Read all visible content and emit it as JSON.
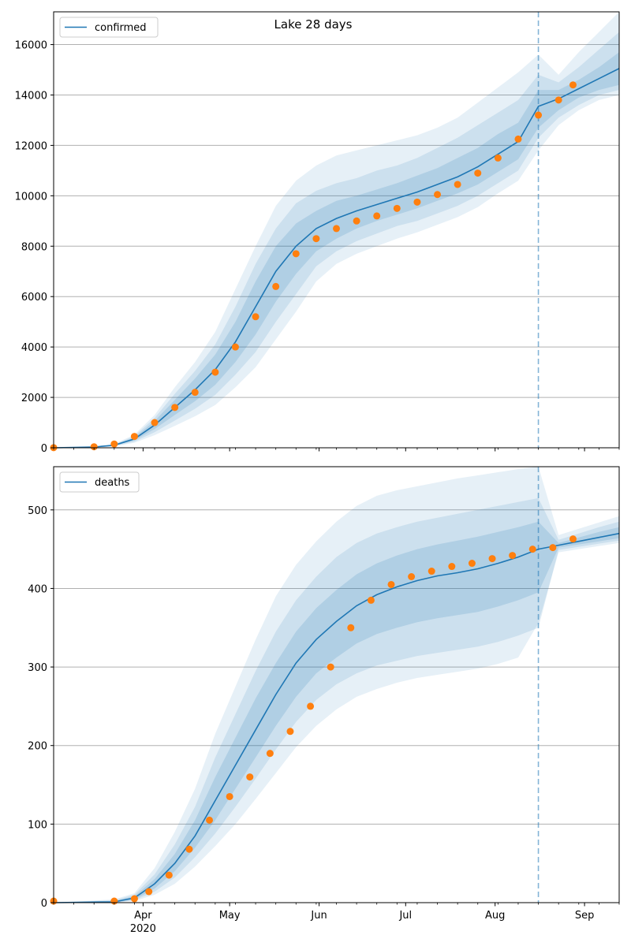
{
  "title": "Lake 28 days",
  "colors": {
    "model_line": "#1f77b4",
    "band": "#1f77b4",
    "observed": "#ff7f0e",
    "grid": "#b0b0b0",
    "cutoff": "#1f77b4"
  },
  "chart_data": [
    {
      "type": "line",
      "name": "confirmed",
      "legend": "confirmed",
      "legend_position": "upper left",
      "grid": "y",
      "x_axis": {
        "type": "date",
        "min": "2020-03-01",
        "max": "2020-09-13",
        "major_ticks": [
          "2020-04-01",
          "2020-05-01",
          "2020-06-01",
          "2020-07-01",
          "2020-08-01",
          "2020-09-01"
        ],
        "major_labels": [
          "Apr",
          "May",
          "Jun",
          "Jul",
          "Aug",
          "Sep"
        ],
        "year_label": "2020"
      },
      "ylim": [
        0,
        17300
      ],
      "yticks": [
        0,
        2000,
        4000,
        6000,
        8000,
        10000,
        12000,
        14000,
        16000
      ],
      "forecast_start": "2020-08-16",
      "model": {
        "x": [
          "2020-03-01",
          "2020-03-15",
          "2020-03-22",
          "2020-03-29",
          "2020-04-05",
          "2020-04-12",
          "2020-04-19",
          "2020-04-26",
          "2020-05-03",
          "2020-05-10",
          "2020-05-17",
          "2020-05-24",
          "2020-05-31",
          "2020-06-07",
          "2020-06-14",
          "2020-06-21",
          "2020-06-28",
          "2020-07-05",
          "2020-07-12",
          "2020-07-19",
          "2020-07-26",
          "2020-08-02",
          "2020-08-09",
          "2020-08-16",
          "2020-08-23",
          "2020-08-30",
          "2020-09-06",
          "2020-09-13"
        ],
        "median": [
          0,
          30,
          100,
          350,
          900,
          1600,
          2300,
          3100,
          4200,
          5600,
          7000,
          8000,
          8700,
          9100,
          9400,
          9650,
          9900,
          10150,
          10450,
          10750,
          11150,
          11650,
          12150,
          13550,
          13850,
          14250,
          14650,
          15050
        ],
        "band_50": [
          [
            0,
            0
          ],
          [
            25,
            35
          ],
          [
            85,
            115
          ],
          [
            290,
            410
          ],
          [
            740,
            1060
          ],
          [
            1300,
            1900
          ],
          [
            1850,
            2750
          ],
          [
            2500,
            3700
          ],
          [
            3400,
            5000
          ],
          [
            4500,
            6600
          ],
          [
            5800,
            8000
          ],
          [
            6900,
            8900
          ],
          [
            7800,
            9400
          ],
          [
            8300,
            9800
          ],
          [
            8700,
            10000
          ],
          [
            9000,
            10250
          ],
          [
            9250,
            10500
          ],
          [
            9500,
            10800
          ],
          [
            9800,
            11100
          ],
          [
            10100,
            11500
          ],
          [
            10450,
            11900
          ],
          [
            10950,
            12450
          ],
          [
            11450,
            12900
          ],
          [
            12700,
            14200
          ],
          [
            13400,
            14200
          ],
          [
            13900,
            14600
          ],
          [
            14200,
            15100
          ],
          [
            14400,
            15700
          ]
        ],
        "band_80": [
          [
            0,
            0
          ],
          [
            20,
            40
          ],
          [
            70,
            130
          ],
          [
            240,
            460
          ],
          [
            620,
            1180
          ],
          [
            1080,
            2140
          ],
          [
            1550,
            3050
          ],
          [
            2100,
            4100
          ],
          [
            2900,
            5600
          ],
          [
            3800,
            7300
          ],
          [
            5000,
            8700
          ],
          [
            6100,
            9700
          ],
          [
            7200,
            10200
          ],
          [
            7800,
            10500
          ],
          [
            8200,
            10700
          ],
          [
            8500,
            11000
          ],
          [
            8800,
            11200
          ],
          [
            9000,
            11500
          ],
          [
            9300,
            11900
          ],
          [
            9600,
            12300
          ],
          [
            10000,
            12800
          ],
          [
            10500,
            13300
          ],
          [
            11000,
            13800
          ],
          [
            12300,
            14800
          ],
          [
            13100,
            14500
          ],
          [
            13600,
            15100
          ],
          [
            14000,
            15800
          ],
          [
            14200,
            16500
          ]
        ],
        "band_95": [
          [
            0,
            0
          ],
          [
            15,
            45
          ],
          [
            55,
            150
          ],
          [
            200,
            520
          ],
          [
            500,
            1300
          ],
          [
            870,
            2400
          ],
          [
            1250,
            3400
          ],
          [
            1700,
            4600
          ],
          [
            2400,
            6300
          ],
          [
            3200,
            8000
          ],
          [
            4300,
            9600
          ],
          [
            5400,
            10600
          ],
          [
            6600,
            11200
          ],
          [
            7300,
            11600
          ],
          [
            7700,
            11800
          ],
          [
            8000,
            12000
          ],
          [
            8300,
            12200
          ],
          [
            8550,
            12400
          ],
          [
            8850,
            12700
          ],
          [
            9150,
            13100
          ],
          [
            9550,
            13700
          ],
          [
            10100,
            14300
          ],
          [
            10600,
            14900
          ],
          [
            11800,
            15600
          ],
          [
            12800,
            14800
          ],
          [
            13400,
            15700
          ],
          [
            13800,
            16500
          ],
          [
            14000,
            17300
          ]
        ]
      },
      "observed": {
        "x": [
          "2020-03-01",
          "2020-03-15",
          "2020-03-22",
          "2020-03-29",
          "2020-04-05",
          "2020-04-12",
          "2020-04-19",
          "2020-04-26",
          "2020-05-03",
          "2020-05-10",
          "2020-05-17",
          "2020-05-24",
          "2020-05-31",
          "2020-06-07",
          "2020-06-14",
          "2020-06-21",
          "2020-06-28",
          "2020-07-05",
          "2020-07-12",
          "2020-07-19",
          "2020-07-26",
          "2020-08-02",
          "2020-08-09",
          "2020-08-16",
          "2020-08-23",
          "2020-08-28"
        ],
        "y": [
          5,
          40,
          150,
          450,
          1000,
          1600,
          2200,
          3000,
          4000,
          5200,
          6400,
          7700,
          8300,
          8700,
          9000,
          9200,
          9500,
          9750,
          10050,
          10450,
          10900,
          11500,
          12250,
          13200,
          13800,
          14400
        ]
      }
    },
    {
      "type": "line",
      "name": "deaths",
      "legend": "deaths",
      "legend_position": "upper left",
      "grid": "y",
      "x_axis": {
        "type": "date",
        "min": "2020-03-01",
        "max": "2020-09-13",
        "major_ticks": [
          "2020-04-01",
          "2020-05-01",
          "2020-06-01",
          "2020-07-01",
          "2020-08-01",
          "2020-09-01"
        ],
        "major_labels": [
          "Apr",
          "May",
          "Jun",
          "Jul",
          "Aug",
          "Sep"
        ],
        "year_label": "2020"
      },
      "ylim": [
        0,
        555
      ],
      "yticks": [
        0,
        100,
        200,
        300,
        400,
        500
      ],
      "forecast_start": "2020-08-16",
      "model": {
        "x": [
          "2020-03-01",
          "2020-03-22",
          "2020-03-29",
          "2020-04-05",
          "2020-04-12",
          "2020-04-19",
          "2020-04-26",
          "2020-05-03",
          "2020-05-10",
          "2020-05-17",
          "2020-05-24",
          "2020-05-31",
          "2020-06-07",
          "2020-06-14",
          "2020-06-21",
          "2020-06-28",
          "2020-07-05",
          "2020-07-12",
          "2020-07-19",
          "2020-07-26",
          "2020-08-02",
          "2020-08-09",
          "2020-08-16",
          "2020-08-23",
          "2020-08-30",
          "2020-09-06",
          "2020-09-13"
        ],
        "median": [
          0,
          1,
          6,
          24,
          50,
          85,
          130,
          175,
          220,
          265,
          305,
          335,
          358,
          378,
          392,
          402,
          410,
          416,
          420,
          425,
          432,
          440,
          450,
          455,
          460,
          465,
          470
        ],
        "band_50": [
          [
            0,
            0
          ],
          [
            0,
            2
          ],
          [
            4,
            8
          ],
          [
            18,
            30
          ],
          [
            40,
            62
          ],
          [
            70,
            105
          ],
          [
            105,
            160
          ],
          [
            145,
            210
          ],
          [
            185,
            260
          ],
          [
            225,
            305
          ],
          [
            262,
            345
          ],
          [
            292,
            375
          ],
          [
            312,
            398
          ],
          [
            330,
            418
          ],
          [
            342,
            432
          ],
          [
            350,
            442
          ],
          [
            357,
            450
          ],
          [
            362,
            456
          ],
          [
            366,
            461
          ],
          [
            370,
            466
          ],
          [
            377,
            472
          ],
          [
            385,
            478
          ],
          [
            395,
            485
          ],
          [
            452,
            458
          ],
          [
            456,
            465
          ],
          [
            460,
            472
          ],
          [
            464,
            478
          ]
        ],
        "band_80": [
          [
            0,
            0
          ],
          [
            0,
            3
          ],
          [
            3,
            10
          ],
          [
            14,
            36
          ],
          [
            32,
            74
          ],
          [
            58,
            122
          ],
          [
            88,
            185
          ],
          [
            122,
            240
          ],
          [
            158,
            295
          ],
          [
            195,
            345
          ],
          [
            230,
            385
          ],
          [
            258,
            415
          ],
          [
            278,
            440
          ],
          [
            292,
            458
          ],
          [
            302,
            470
          ],
          [
            308,
            478
          ],
          [
            314,
            485
          ],
          [
            318,
            490
          ],
          [
            322,
            495
          ],
          [
            326,
            500
          ],
          [
            332,
            505
          ],
          [
            340,
            510
          ],
          [
            350,
            515
          ],
          [
            449,
            462
          ],
          [
            453,
            470
          ],
          [
            457,
            478
          ],
          [
            461,
            485
          ]
        ],
        "band_95": [
          [
            0,
            0
          ],
          [
            0,
            4
          ],
          [
            2,
            12
          ],
          [
            10,
            44
          ],
          [
            24,
            90
          ],
          [
            46,
            145
          ],
          [
            72,
            215
          ],
          [
            100,
            275
          ],
          [
            132,
            335
          ],
          [
            165,
            390
          ],
          [
            198,
            430
          ],
          [
            225,
            460
          ],
          [
            246,
            485
          ],
          [
            262,
            505
          ],
          [
            272,
            518
          ],
          [
            280,
            525
          ],
          [
            286,
            530
          ],
          [
            290,
            535
          ],
          [
            294,
            540
          ],
          [
            298,
            544
          ],
          [
            304,
            548
          ],
          [
            312,
            552
          ],
          [
            356,
            555
          ],
          [
            446,
            468
          ],
          [
            450,
            476
          ],
          [
            454,
            484
          ],
          [
            458,
            492
          ]
        ]
      },
      "observed": {
        "x": [
          "2020-03-01",
          "2020-03-22",
          "2020-03-29",
          "2020-04-03",
          "2020-04-10",
          "2020-04-17",
          "2020-04-24",
          "2020-05-01",
          "2020-05-08",
          "2020-05-15",
          "2020-05-22",
          "2020-05-29",
          "2020-06-05",
          "2020-06-12",
          "2020-06-19",
          "2020-06-26",
          "2020-07-03",
          "2020-07-10",
          "2020-07-17",
          "2020-07-24",
          "2020-07-31",
          "2020-08-07",
          "2020-08-14",
          "2020-08-21",
          "2020-08-28"
        ],
        "y": [
          2,
          2,
          5,
          14,
          35,
          68,
          105,
          135,
          160,
          190,
          218,
          250,
          300,
          350,
          385,
          405,
          415,
          422,
          428,
          432,
          438,
          442,
          450,
          452,
          463
        ]
      }
    }
  ]
}
